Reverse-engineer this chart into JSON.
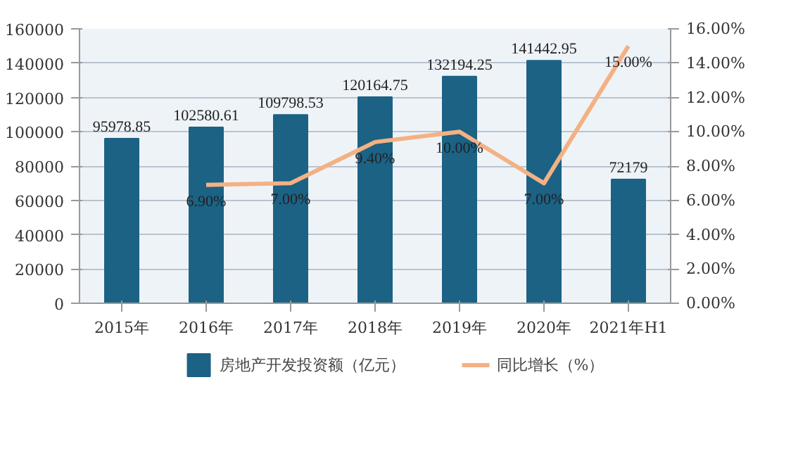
{
  "chart_data": {
    "type": "bar",
    "categories": [
      "2015年",
      "2016年",
      "2017年",
      "2018年",
      "2019年",
      "2020年",
      "2021年H1"
    ],
    "series": [
      {
        "name": "房地产开发投资额（亿元）",
        "type": "bar",
        "color": "#1b6285",
        "values": [
          95978.85,
          102580.61,
          109798.53,
          120164.75,
          132194.25,
          141442.95,
          72179
        ],
        "value_labels": [
          "95978.85",
          "102580.61",
          "109798.53",
          "120164.75",
          "132194.25",
          "141442.95",
          "72179"
        ]
      },
      {
        "name": "同比增长（%）",
        "type": "line",
        "axis": "y2",
        "color": "#f4b183",
        "values": [
          null,
          6.9,
          7.0,
          9.4,
          10.0,
          7.0,
          15.0
        ],
        "value_labels": [
          null,
          "6.90%",
          "7.00%",
          "9.40%",
          "10.00%",
          "7.00%",
          "15.00%"
        ]
      }
    ],
    "ylim": [
      0,
      160000
    ],
    "yticks": [
      0,
      20000,
      40000,
      60000,
      80000,
      100000,
      120000,
      140000,
      160000
    ],
    "y2lim": [
      0,
      16
    ],
    "y2ticks": [
      {
        "value": 0,
        "label": "0.00%"
      },
      {
        "value": 2,
        "label": "2.00%"
      },
      {
        "value": 4,
        "label": "4.00%"
      },
      {
        "value": 6,
        "label": "6.00%"
      },
      {
        "value": 8,
        "label": "8.00%"
      },
      {
        "value": 10,
        "label": "10.00%"
      },
      {
        "value": 12,
        "label": "12.00%"
      },
      {
        "value": 14,
        "label": "14.00%"
      },
      {
        "value": 16,
        "label": "16.00%"
      }
    ],
    "grid": "y",
    "legend": "bottom",
    "line_style": "solid"
  }
}
